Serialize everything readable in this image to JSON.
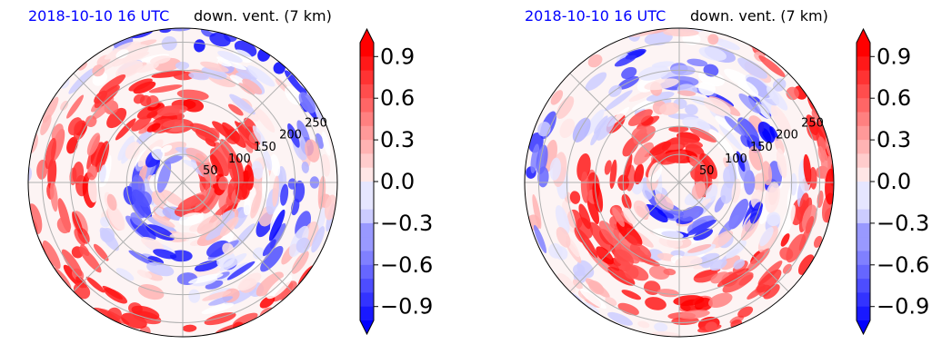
{
  "panels": [
    {
      "id": "left",
      "title_date": "2018-10-10 16 UTC",
      "title_main": "down. vent. (7 km)",
      "blob_seed": 7
    },
    {
      "id": "right",
      "title_date": "2018-10-10 16 UTC",
      "title_main": "down. vent. (7 km)",
      "blob_seed": 19
    }
  ],
  "chart_data": [
    {
      "type": "heatmap",
      "projection": "polar",
      "title": "2018-10-10 16 UTC   down. vent. (7 km)",
      "radial_ticks": [
        50,
        100,
        150,
        200,
        250
      ],
      "angular_grid_deg": [
        0,
        45,
        90,
        135,
        180,
        225,
        270,
        315
      ],
      "colorbar": {
        "ticks": [
          -0.9,
          -0.6,
          -0.3,
          0.0,
          0.3,
          0.6,
          0.9
        ],
        "tick_labels": [
          "0.9",
          "0.6",
          "0.3",
          "0.0",
          "−0.3",
          "−0.6",
          "−0.9"
        ],
        "range": [
          -1.0,
          1.0
        ],
        "extend": "both",
        "colormap": "bwr",
        "levels": 20
      }
    },
    {
      "type": "heatmap",
      "projection": "polar",
      "title": "2018-10-10 16 UTC   down. vent. (7 km)",
      "radial_ticks": [
        50,
        100,
        150,
        200,
        250
      ],
      "angular_grid_deg": [
        0,
        45,
        90,
        135,
        180,
        225,
        270,
        315
      ],
      "colorbar": {
        "ticks": [
          -0.9,
          -0.6,
          -0.3,
          0.0,
          0.3,
          0.6,
          0.9
        ],
        "tick_labels": [
          "0.9",
          "0.6",
          "0.3",
          "0.0",
          "−0.3",
          "−0.6",
          "−0.9"
        ],
        "range": [
          -1.0,
          1.0
        ],
        "extend": "both",
        "colormap": "bwr",
        "levels": 20
      }
    }
  ]
}
